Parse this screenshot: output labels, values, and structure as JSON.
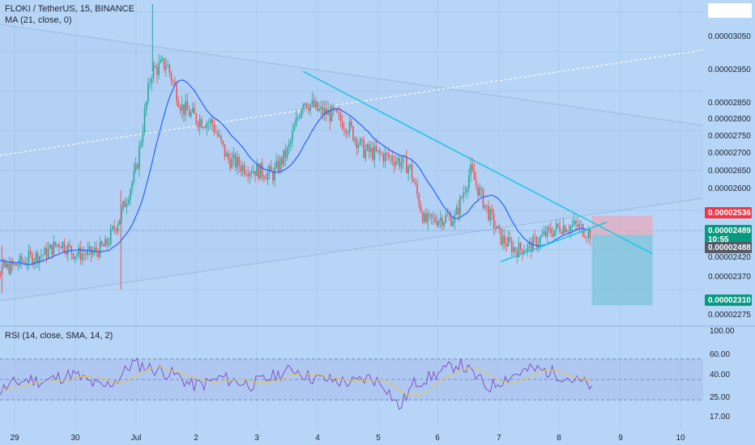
{
  "header": {
    "symbol_line": "FLOKI / TetherUS, 15, BINANCE",
    "ma_line": "MA (21, close, 0)",
    "rsi_line": "RSI (14, close, SMA, 14, 2)"
  },
  "colors": {
    "background": "#b7d6f7",
    "candle_up": "#26a69a",
    "candle_down": "#ef5350",
    "ma_line": "#2962ff",
    "trendline": "#25c6e0",
    "rsi_line": "#7e57c2",
    "rsi_sma": "#e8c547",
    "stop_zone": "#e9a7b8",
    "target_zone": "#7dc4d8",
    "stop_badge": "#f23645",
    "price_badge": "#089981",
    "entry_badge": "#555a66"
  },
  "chart_data": [
    {
      "type": "candlestick",
      "title": "FLOKI / TetherUS, 15, BINANCE",
      "xlabel": "",
      "ylabel": "",
      "x_axis": {
        "type": "date",
        "ticks": [
          "29",
          "30",
          "Jul",
          "2",
          "3",
          "4",
          "5",
          "6",
          "7",
          "8",
          "9",
          "10"
        ],
        "range": [
          "Jun 28 12:00",
          "Jul 10 12:00"
        ]
      },
      "y_axis": {
        "position": "right",
        "range": [
          2.26e-05,
          3.08e-05
        ],
        "tick_labels": [
          "0.00003050",
          "0.00002950",
          "0.00002850",
          "0.00002800",
          "0.00002750",
          "0.00002700",
          "0.00002650",
          "0.00002600",
          "0.00002420",
          "0.00002370",
          "0.00002275"
        ]
      },
      "series": [
        {
          "name": "price_close",
          "points": [
            [
              "Jun 28 12:00",
              2.47e-05
            ],
            [
              "Jun 28 15:00",
              2.43e-05
            ],
            [
              "Jun 28 18:00",
              2.4e-05
            ],
            [
              "Jun 29 00:00",
              2.41e-05
            ],
            [
              "Jun 29 06:00",
              2.43e-05
            ],
            [
              "Jun 29 12:00",
              2.44e-05
            ],
            [
              "Jun 29 18:00",
              2.47e-05
            ],
            [
              "Jun 30 00:00",
              2.44e-05
            ],
            [
              "Jun 30 06:00",
              2.44e-05
            ],
            [
              "Jun 30 12:00",
              2.46e-05
            ],
            [
              "Jun 30 18:00",
              2.54e-05
            ],
            [
              "Jul 1 00:00",
              2.65e-05
            ],
            [
              "Jul 1 06:00",
              2.9e-05
            ],
            [
              "Jul 1 12:00",
              2.92e-05
            ],
            [
              "Jul 1 18:00",
              2.81e-05
            ],
            [
              "Jul 2 00:00",
              2.78e-05
            ],
            [
              "Jul 2 06:00",
              2.77e-05
            ],
            [
              "Jul 2 12:00",
              2.68e-05
            ],
            [
              "Jul 2 18:00",
              2.66e-05
            ],
            [
              "Jul 3 00:00",
              2.65e-05
            ],
            [
              "Jul 3 06:00",
              2.64e-05
            ],
            [
              "Jul 3 12:00",
              2.7e-05
            ],
            [
              "Jul 3 18:00",
              2.83e-05
            ],
            [
              "Jul 4 00:00",
              2.8e-05
            ],
            [
              "Jul 4 06:00",
              2.79e-05
            ],
            [
              "Jul 4 12:00",
              2.76e-05
            ],
            [
              "Jul 4 18:00",
              2.7e-05
            ],
            [
              "Jul 5 00:00",
              2.69e-05
            ],
            [
              "Jul 5 06:00",
              2.68e-05
            ],
            [
              "Jul 5 12:00",
              2.66e-05
            ],
            [
              "Jul 5 18:00",
              2.52e-05
            ],
            [
              "Jul 6 00:00",
              2.53e-05
            ],
            [
              "Jul 6 06:00",
              2.53e-05
            ],
            [
              "Jul 6 12:00",
              2.65e-05
            ],
            [
              "Jul 6 18:00",
              2.56e-05
            ],
            [
              "Jul 7 00:00",
              2.48e-05
            ],
            [
              "Jul 7 06:00",
              2.45e-05
            ],
            [
              "Jul 7 12:00",
              2.46e-05
            ],
            [
              "Jul 7 18:00",
              2.49e-05
            ],
            [
              "Jul 8 00:00",
              2.51e-05
            ],
            [
              "Jul 8 06:00",
              2.51e-05
            ],
            [
              "Jul 8 12:00",
              2.49e-05
            ]
          ]
        },
        {
          "name": "MA 21",
          "derived_from": "price_close"
        }
      ],
      "trendlines": [
        {
          "from": [
            "Jul 3 18:00",
            2.9e-05
          ],
          "to": [
            "Jul 9 12:00",
            2.44e-05
          ]
        },
        {
          "from": [
            "Jul 7 00:00",
            2.42e-05
          ],
          "to": [
            "Jul 8 18:00",
            2.52e-05
          ]
        }
      ],
      "position_tool": {
        "entry": 2.488e-05,
        "stop": 2.536e-05,
        "target": 2.31e-05,
        "from": "Jul 8 12:00",
        "to": "Jul 9 12:00"
      },
      "price_labels": {
        "stop": "0.00002536",
        "last_price": "0.00002489",
        "countdown": "10:55",
        "entry": "0.00002488",
        "target": "0.00002310"
      }
    },
    {
      "type": "line",
      "title": "RSI (14, close, SMA, 14, 2)",
      "y_axis": {
        "position": "right",
        "tick_labels": [
          "100.00",
          "60.00",
          "40.00",
          "25.00",
          "17.00"
        ],
        "bands": [
          70,
          50,
          30
        ]
      },
      "series": [
        {
          "name": "RSI",
          "values": [
            44,
            38,
            46,
            50,
            48,
            52,
            55,
            48,
            42,
            50,
            66,
            62,
            58,
            54,
            44,
            46,
            52,
            48,
            45,
            50,
            56,
            60,
            52,
            50,
            48,
            47,
            52,
            45,
            22,
            46,
            52,
            58,
            66,
            55,
            42,
            50,
            56,
            60,
            58,
            54,
            48,
            44
          ]
        },
        {
          "name": "RSI-based MA",
          "derived_from": "RSI"
        }
      ]
    }
  ]
}
